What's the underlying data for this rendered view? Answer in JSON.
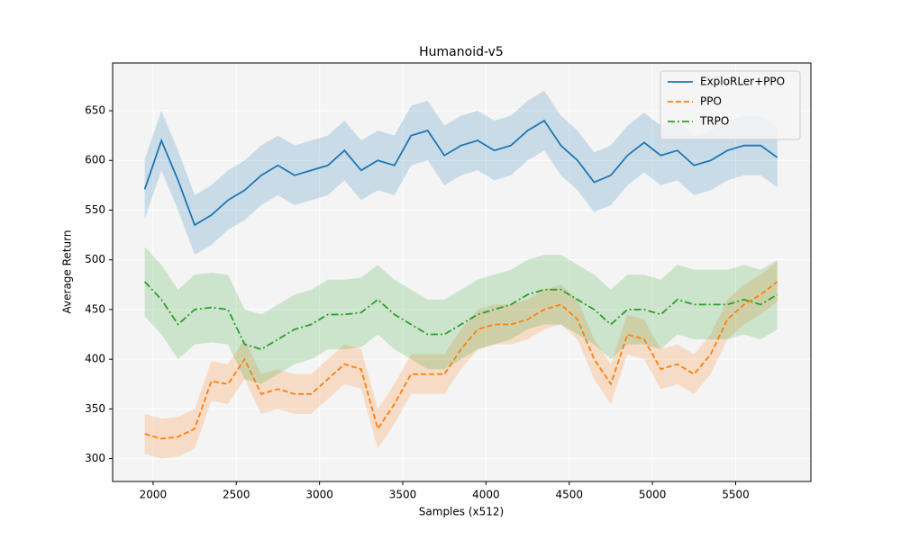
{
  "chart_data": {
    "type": "line",
    "title": "Humanoid-v5",
    "xlabel": "Samples (x512)",
    "ylabel": "Average Return",
    "x": [
      1950,
      2050,
      2150,
      2250,
      2350,
      2450,
      2550,
      2650,
      2750,
      2850,
      2950,
      3050,
      3150,
      3250,
      3350,
      3450,
      3550,
      3650,
      3750,
      3850,
      3950,
      4050,
      4150,
      4250,
      4350,
      4450,
      4550,
      4650,
      4750,
      4850,
      4950,
      5050,
      5150,
      5250,
      5350,
      5450,
      5550,
      5650,
      5750
    ],
    "series": [
      {
        "name": "ExploRLer+PPO",
        "color": "#1f77b4",
        "linestyle": "solid",
        "values": [
          571,
          620,
          580,
          535,
          545,
          560,
          570,
          585,
          595,
          585,
          590,
          595,
          610,
          590,
          600,
          595,
          625,
          630,
          605,
          615,
          620,
          610,
          615,
          630,
          640,
          615,
          600,
          578,
          585,
          605,
          618,
          605,
          610,
          595,
          600,
          610,
          615,
          615,
          603
        ],
        "upper": [
          601,
          650,
          610,
          565,
          575,
          590,
          600,
          615,
          625,
          615,
          620,
          625,
          640,
          620,
          630,
          625,
          655,
          660,
          635,
          645,
          650,
          640,
          645,
          660,
          670,
          645,
          630,
          608,
          615,
          635,
          648,
          635,
          640,
          625,
          630,
          640,
          645,
          645,
          633
        ],
        "lower": [
          541,
          590,
          550,
          505,
          515,
          530,
          540,
          555,
          565,
          555,
          560,
          565,
          580,
          560,
          570,
          565,
          595,
          600,
          575,
          585,
          590,
          580,
          585,
          600,
          610,
          585,
          570,
          548,
          555,
          575,
          588,
          575,
          580,
          565,
          570,
          580,
          585,
          585,
          573
        ]
      },
      {
        "name": "PPO",
        "color": "#ff7f0e",
        "linestyle": "dashed",
        "values": [
          325,
          320,
          322,
          330,
          378,
          375,
          400,
          365,
          370,
          365,
          365,
          380,
          395,
          390,
          330,
          355,
          385,
          385,
          385,
          410,
          430,
          435,
          435,
          440,
          450,
          455,
          440,
          400,
          375,
          425,
          420,
          390,
          395,
          385,
          405,
          440,
          455,
          465,
          478
        ],
        "upper": [
          345,
          340,
          342,
          350,
          398,
          395,
          420,
          385,
          390,
          385,
          385,
          400,
          415,
          410,
          350,
          375,
          405,
          405,
          405,
          430,
          450,
          455,
          455,
          460,
          470,
          475,
          460,
          420,
          395,
          445,
          440,
          410,
          415,
          405,
          425,
          460,
          475,
          485,
          498
        ],
        "lower": [
          305,
          300,
          302,
          310,
          358,
          355,
          380,
          345,
          350,
          345,
          345,
          360,
          375,
          370,
          310,
          335,
          365,
          365,
          365,
          390,
          410,
          415,
          415,
          420,
          430,
          435,
          420,
          380,
          355,
          405,
          400,
          370,
          375,
          365,
          385,
          420,
          435,
          445,
          458
        ]
      },
      {
        "name": "TRPO",
        "color": "#2ca02c",
        "linestyle": "dashdot",
        "values": [
          478,
          460,
          435,
          450,
          452,
          450,
          415,
          410,
          420,
          430,
          435,
          445,
          445,
          447,
          460,
          445,
          435,
          425,
          425,
          435,
          445,
          450,
          455,
          465,
          470,
          470,
          460,
          450,
          435,
          450,
          450,
          445,
          460,
          455,
          455,
          455,
          460,
          455,
          465
        ],
        "upper": [
          513,
          495,
          470,
          485,
          487,
          485,
          450,
          445,
          455,
          465,
          470,
          480,
          480,
          482,
          495,
          480,
          470,
          460,
          460,
          470,
          480,
          485,
          490,
          500,
          505,
          505,
          495,
          485,
          470,
          485,
          485,
          480,
          495,
          490,
          490,
          490,
          495,
          490,
          500
        ],
        "lower": [
          443,
          425,
          400,
          415,
          417,
          415,
          380,
          375,
          385,
          395,
          400,
          410,
          410,
          412,
          425,
          410,
          400,
          390,
          390,
          400,
          410,
          415,
          420,
          430,
          435,
          435,
          425,
          415,
          400,
          415,
          415,
          410,
          425,
          420,
          420,
          420,
          425,
          420,
          430
        ]
      }
    ],
    "xlim": [
      1757,
      5952
    ],
    "xticks": [
      2000,
      2500,
      3000,
      3500,
      4000,
      4500,
      5000,
      5500
    ],
    "ylim": [
      277,
      698
    ],
    "yticks": [
      300,
      350,
      400,
      450,
      500,
      550,
      600,
      650
    ],
    "grid": true,
    "legend": "upper right"
  }
}
